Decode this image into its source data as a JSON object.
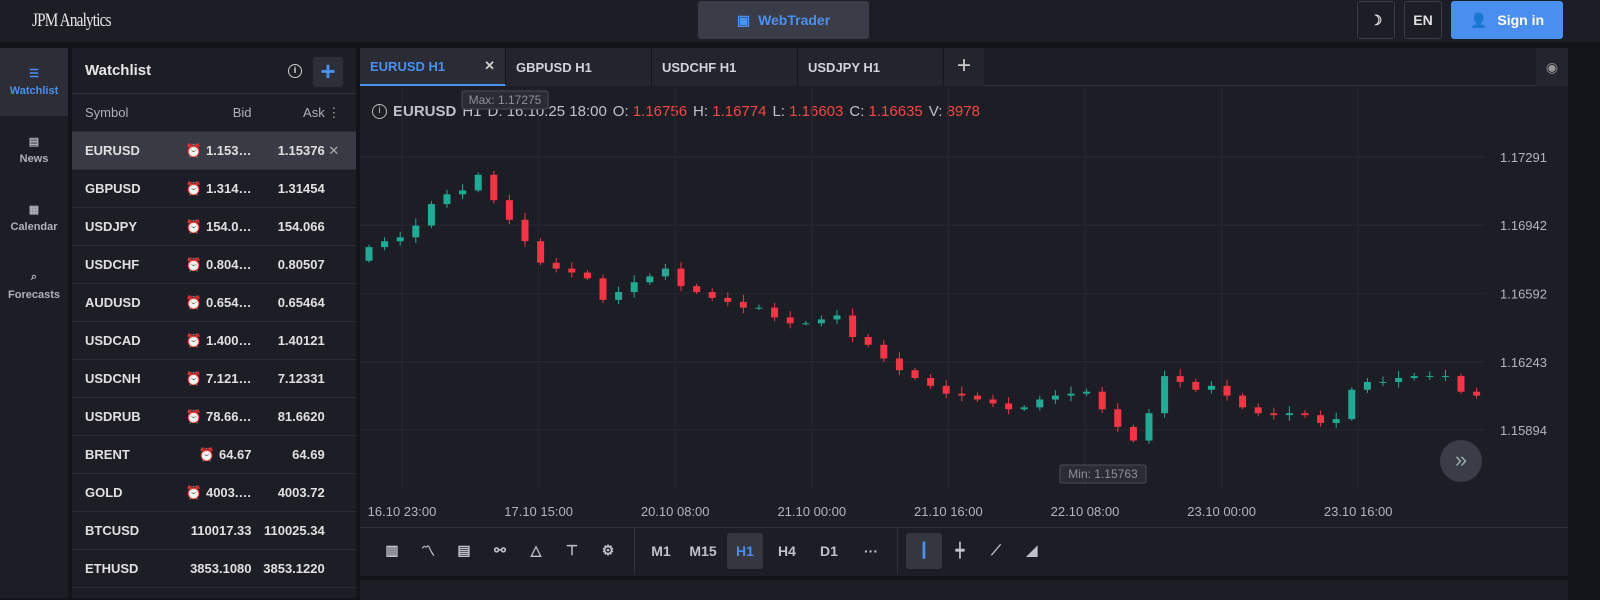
{
  "header": {
    "logo": "JPM Analytics",
    "webtrader": "WebTrader",
    "lang": "EN",
    "signin": "Sign in"
  },
  "nav": [
    {
      "label": "Watchlist",
      "icon": "watchlist-icon"
    },
    {
      "label": "News",
      "icon": "news-icon"
    },
    {
      "label": "Calendar",
      "icon": "calendar-icon"
    },
    {
      "label": "Forecasts",
      "icon": "forecasts-icon"
    }
  ],
  "watchlist": {
    "title": "Watchlist",
    "columns": [
      "Symbol",
      "Bid",
      "Ask"
    ],
    "rows": [
      {
        "symbol": "EURUSD",
        "bid": "1.153…",
        "ask": "1.15376",
        "alarm": true
      },
      {
        "symbol": "GBPUSD",
        "bid": "1.314…",
        "ask": "1.31454",
        "alarm": true
      },
      {
        "symbol": "USDJPY",
        "bid": "154.0…",
        "ask": "154.066",
        "alarm": true
      },
      {
        "symbol": "USDCHF",
        "bid": "0.804…",
        "ask": "0.80507",
        "alarm": true
      },
      {
        "symbol": "AUDUSD",
        "bid": "0.654…",
        "ask": "0.65464",
        "alarm": true
      },
      {
        "symbol": "USDCAD",
        "bid": "1.400…",
        "ask": "1.40121",
        "alarm": true
      },
      {
        "symbol": "USDCNH",
        "bid": "7.121…",
        "ask": "7.12331",
        "alarm": true
      },
      {
        "symbol": "USDRUB",
        "bid": "78.66…",
        "ask": "81.6620",
        "alarm": true
      },
      {
        "symbol": "BRENT",
        "bid": "64.67",
        "ask": "64.69",
        "alarm": true
      },
      {
        "symbol": "GOLD",
        "bid": "4003.…",
        "ask": "4003.72",
        "alarm": true
      },
      {
        "symbol": "BTCUSD",
        "bid": "110017.33",
        "ask": "110025.34",
        "alarm": false
      },
      {
        "symbol": "ETHUSD",
        "bid": "3853.1080",
        "ask": "3853.1220",
        "alarm": false
      }
    ]
  },
  "tabs": [
    "EURUSD H1",
    "GBPUSD H1",
    "USDCHF H1",
    "USDJPY H1"
  ],
  "ohlc": {
    "symbol": "EURUSD",
    "tf": "H1",
    "d": "D: 16.10.25 18:00",
    "o_label": "O:",
    "o": "1.16756",
    "h_label": "H:",
    "h": "1.16774",
    "l_label": "L:",
    "l": "1.16603",
    "c_label": "C:",
    "c": "1.16635",
    "v_label": "V:",
    "v": "8978"
  },
  "timeframes": [
    "M1",
    "M15",
    "H1",
    "H4",
    "D1",
    "···"
  ],
  "colors": {
    "up": "#22ab94",
    "down": "#f23645",
    "accent": "#4a90f0"
  },
  "chart_data": {
    "type": "candlestick",
    "max_label": "Max: 1.17275",
    "min_label": "Min: 1.15763",
    "ylim": [
      1.156,
      1.1745
    ],
    "yticks": [
      "1.17291",
      "1.16942",
      "1.16592",
      "1.16243",
      "1.15894"
    ],
    "xticks": [
      "16.10 23:00",
      "17.10 15:00",
      "20.10 08:00",
      "21.10 00:00",
      "21.10 16:00",
      "22.10 08:00",
      "23.10 00:00",
      "23.10 16:00"
    ],
    "open0": 1.1676,
    "closes": [
      1.1683,
      1.1686,
      1.1688,
      1.1694,
      1.1705,
      1.171,
      1.1712,
      1.172,
      1.1707,
      1.1697,
      1.1686,
      1.1675,
      1.1672,
      1.167,
      1.1667,
      1.1656,
      1.166,
      1.1665,
      1.1668,
      1.1672,
      1.1663,
      1.166,
      1.1657,
      1.1655,
      1.1652,
      1.1652,
      1.1647,
      1.1644,
      1.1644,
      1.1646,
      1.1648,
      1.1637,
      1.1633,
      1.1626,
      1.162,
      1.1616,
      1.1612,
      1.1608,
      1.1607,
      1.1605,
      1.1603,
      1.16,
      1.1601,
      1.1605,
      1.1607,
      1.1608,
      1.1609,
      1.16,
      1.1591,
      1.1584,
      1.1598,
      1.1617,
      1.1614,
      1.161,
      1.1612,
      1.1607,
      1.1601,
      1.1598,
      1.1597,
      1.1598,
      1.1597,
      1.1593,
      1.1595,
      1.161,
      1.1614,
      1.1614,
      1.1616,
      1.1617,
      1.1617,
      1.1617,
      1.1609,
      1.1607
    ]
  }
}
